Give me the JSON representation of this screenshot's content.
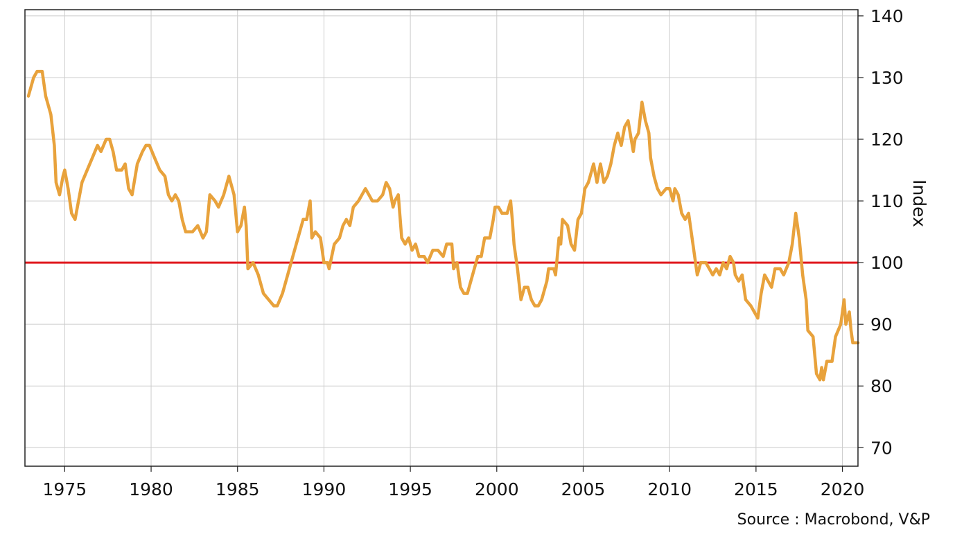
{
  "source": "Source : Macrobond, V&P",
  "chart_data": {
    "type": "line",
    "title": "",
    "xlabel": "",
    "ylabel": "Index",
    "xlim": [
      1972.7,
      2020.9
    ],
    "ylim": [
      67,
      141
    ],
    "x_ticks": [
      1975,
      1980,
      1985,
      1990,
      1995,
      2000,
      2005,
      2010,
      2015,
      2020
    ],
    "x_tick_labels": [
      "1975",
      "1980",
      "1985",
      "1990",
      "1995",
      "2000",
      "2005",
      "2010",
      "2015",
      "2020"
    ],
    "y_ticks": [
      70,
      80,
      90,
      100,
      110,
      120,
      130,
      140
    ],
    "y_tick_labels": [
      "70",
      "80",
      "90",
      "100",
      "110",
      "120",
      "130",
      "140"
    ],
    "y_axis_position": "right",
    "grid": true,
    "legend": "none",
    "reference_line": {
      "y": 100,
      "color": "#e0191e"
    },
    "series": [
      {
        "color": "#e8a23c",
        "points": [
          [
            1972.9,
            127
          ],
          [
            1973.2,
            130
          ],
          [
            1973.4,
            131
          ],
          [
            1973.7,
            131
          ],
          [
            1973.9,
            127
          ],
          [
            1974.2,
            124
          ],
          [
            1974.4,
            119
          ],
          [
            1974.5,
            113
          ],
          [
            1974.7,
            111
          ],
          [
            1974.9,
            114
          ],
          [
            1975.0,
            115
          ],
          [
            1975.2,
            112
          ],
          [
            1975.4,
            108
          ],
          [
            1975.6,
            107
          ],
          [
            1975.8,
            110
          ],
          [
            1976.0,
            113
          ],
          [
            1976.3,
            115
          ],
          [
            1976.6,
            117
          ],
          [
            1976.9,
            119
          ],
          [
            1977.1,
            118
          ],
          [
            1977.4,
            120
          ],
          [
            1977.6,
            120
          ],
          [
            1977.8,
            118
          ],
          [
            1978.0,
            115
          ],
          [
            1978.3,
            115
          ],
          [
            1978.5,
            116
          ],
          [
            1978.7,
            112
          ],
          [
            1978.9,
            111
          ],
          [
            1979.2,
            116
          ],
          [
            1979.5,
            118
          ],
          [
            1979.7,
            119
          ],
          [
            1979.9,
            119
          ],
          [
            1980.2,
            117
          ],
          [
            1980.5,
            115
          ],
          [
            1980.8,
            114
          ],
          [
            1981.0,
            111
          ],
          [
            1981.2,
            110
          ],
          [
            1981.4,
            111
          ],
          [
            1981.6,
            110
          ],
          [
            1981.8,
            107
          ],
          [
            1982.0,
            105
          ],
          [
            1982.4,
            105
          ],
          [
            1982.7,
            106
          ],
          [
            1983.0,
            104
          ],
          [
            1983.2,
            105
          ],
          [
            1983.4,
            111
          ],
          [
            1983.7,
            110
          ],
          [
            1983.9,
            109
          ],
          [
            1984.2,
            111
          ],
          [
            1984.5,
            114
          ],
          [
            1984.8,
            111
          ],
          [
            1985.0,
            105
          ],
          [
            1985.2,
            106
          ],
          [
            1985.4,
            109
          ],
          [
            1985.5,
            106
          ],
          [
            1985.6,
            99
          ],
          [
            1985.9,
            100
          ],
          [
            1986.2,
            98
          ],
          [
            1986.5,
            95
          ],
          [
            1986.8,
            94
          ],
          [
            1987.1,
            93
          ],
          [
            1987.3,
            93
          ],
          [
            1987.6,
            95
          ],
          [
            1987.9,
            98
          ],
          [
            1988.2,
            101
          ],
          [
            1988.5,
            104
          ],
          [
            1988.8,
            107
          ],
          [
            1989.0,
            107
          ],
          [
            1989.2,
            110
          ],
          [
            1989.3,
            104
          ],
          [
            1989.5,
            105
          ],
          [
            1989.8,
            104
          ],
          [
            1990.0,
            100
          ],
          [
            1990.2,
            100
          ],
          [
            1990.3,
            99
          ],
          [
            1990.6,
            103
          ],
          [
            1990.9,
            104
          ],
          [
            1991.1,
            106
          ],
          [
            1991.3,
            107
          ],
          [
            1991.5,
            106
          ],
          [
            1991.7,
            109
          ],
          [
            1992.0,
            110
          ],
          [
            1992.2,
            111
          ],
          [
            1992.4,
            112
          ],
          [
            1992.6,
            111
          ],
          [
            1992.8,
            110
          ],
          [
            1993.1,
            110
          ],
          [
            1993.4,
            111
          ],
          [
            1993.6,
            113
          ],
          [
            1993.8,
            112
          ],
          [
            1994.0,
            109
          ],
          [
            1994.1,
            110
          ],
          [
            1994.3,
            111
          ],
          [
            1994.5,
            104
          ],
          [
            1994.7,
            103
          ],
          [
            1994.9,
            104
          ],
          [
            1995.1,
            102
          ],
          [
            1995.3,
            103
          ],
          [
            1995.5,
            101
          ],
          [
            1995.8,
            101
          ],
          [
            1996.0,
            100
          ],
          [
            1996.3,
            102
          ],
          [
            1996.6,
            102
          ],
          [
            1996.9,
            101
          ],
          [
            1997.1,
            103
          ],
          [
            1997.4,
            103
          ],
          [
            1997.5,
            99
          ],
          [
            1997.7,
            100
          ],
          [
            1997.9,
            96
          ],
          [
            1998.1,
            95
          ],
          [
            1998.3,
            95
          ],
          [
            1998.6,
            98
          ],
          [
            1998.9,
            101
          ],
          [
            1999.1,
            101
          ],
          [
            1999.3,
            104
          ],
          [
            1999.6,
            104
          ],
          [
            1999.8,
            107
          ],
          [
            1999.9,
            109
          ],
          [
            2000.1,
            109
          ],
          [
            2000.3,
            108
          ],
          [
            2000.6,
            108
          ],
          [
            2000.8,
            110
          ],
          [
            2000.9,
            107
          ],
          [
            2001.0,
            103
          ],
          [
            2001.2,
            99
          ],
          [
            2001.4,
            94
          ],
          [
            2001.6,
            96
          ],
          [
            2001.8,
            96
          ],
          [
            2002.0,
            94
          ],
          [
            2002.2,
            93
          ],
          [
            2002.4,
            93
          ],
          [
            2002.6,
            94
          ],
          [
            2002.9,
            97
          ],
          [
            2003.0,
            99
          ],
          [
            2003.3,
            99
          ],
          [
            2003.4,
            98
          ],
          [
            2003.6,
            104
          ],
          [
            2003.7,
            103
          ],
          [
            2003.8,
            107
          ],
          [
            2004.1,
            106
          ],
          [
            2004.3,
            103
          ],
          [
            2004.5,
            102
          ],
          [
            2004.7,
            107
          ],
          [
            2004.9,
            108
          ],
          [
            2005.1,
            112
          ],
          [
            2005.3,
            113
          ],
          [
            2005.6,
            116
          ],
          [
            2005.8,
            113
          ],
          [
            2006.0,
            116
          ],
          [
            2006.2,
            113
          ],
          [
            2006.4,
            114
          ],
          [
            2006.6,
            116
          ],
          [
            2006.8,
            119
          ],
          [
            2007.0,
            121
          ],
          [
            2007.2,
            119
          ],
          [
            2007.4,
            122
          ],
          [
            2007.6,
            123
          ],
          [
            2007.9,
            118
          ],
          [
            2008.0,
            120
          ],
          [
            2008.2,
            121
          ],
          [
            2008.4,
            126
          ],
          [
            2008.6,
            123
          ],
          [
            2008.8,
            121
          ],
          [
            2008.9,
            117
          ],
          [
            2009.1,
            114
          ],
          [
            2009.3,
            112
          ],
          [
            2009.5,
            111
          ],
          [
            2009.8,
            112
          ],
          [
            2010.0,
            112
          ],
          [
            2010.2,
            110
          ],
          [
            2010.3,
            112
          ],
          [
            2010.5,
            111
          ],
          [
            2010.7,
            108
          ],
          [
            2010.9,
            107
          ],
          [
            2011.1,
            108
          ],
          [
            2011.3,
            104
          ],
          [
            2011.5,
            100
          ],
          [
            2011.6,
            98
          ],
          [
            2011.8,
            100
          ],
          [
            2012.1,
            100
          ],
          [
            2012.3,
            99
          ],
          [
            2012.5,
            98
          ],
          [
            2012.7,
            99
          ],
          [
            2012.9,
            98
          ],
          [
            2013.1,
            100
          ],
          [
            2013.3,
            99
          ],
          [
            2013.5,
            101
          ],
          [
            2013.7,
            100
          ],
          [
            2013.8,
            98
          ],
          [
            2014.0,
            97
          ],
          [
            2014.2,
            98
          ],
          [
            2014.4,
            94
          ],
          [
            2014.7,
            93
          ],
          [
            2014.9,
            92
          ],
          [
            2015.1,
            91
          ],
          [
            2015.3,
            95
          ],
          [
            2015.5,
            98
          ],
          [
            2015.7,
            97
          ],
          [
            2015.9,
            96
          ],
          [
            2016.1,
            99
          ],
          [
            2016.4,
            99
          ],
          [
            2016.6,
            98
          ],
          [
            2016.9,
            100
          ],
          [
            2017.1,
            103
          ],
          [
            2017.3,
            108
          ],
          [
            2017.5,
            104
          ],
          [
            2017.7,
            98
          ],
          [
            2017.9,
            94
          ],
          [
            2018.0,
            89
          ],
          [
            2018.3,
            88
          ],
          [
            2018.5,
            82
          ],
          [
            2018.7,
            81
          ],
          [
            2018.8,
            83
          ],
          [
            2018.9,
            81
          ],
          [
            2019.1,
            84
          ],
          [
            2019.4,
            84
          ],
          [
            2019.6,
            88
          ],
          [
            2019.9,
            90
          ],
          [
            2020.0,
            92
          ],
          [
            2020.1,
            94
          ],
          [
            2020.2,
            90
          ],
          [
            2020.4,
            92
          ],
          [
            2020.5,
            89
          ],
          [
            2020.6,
            87
          ],
          [
            2020.9,
            87
          ]
        ]
      }
    ]
  }
}
